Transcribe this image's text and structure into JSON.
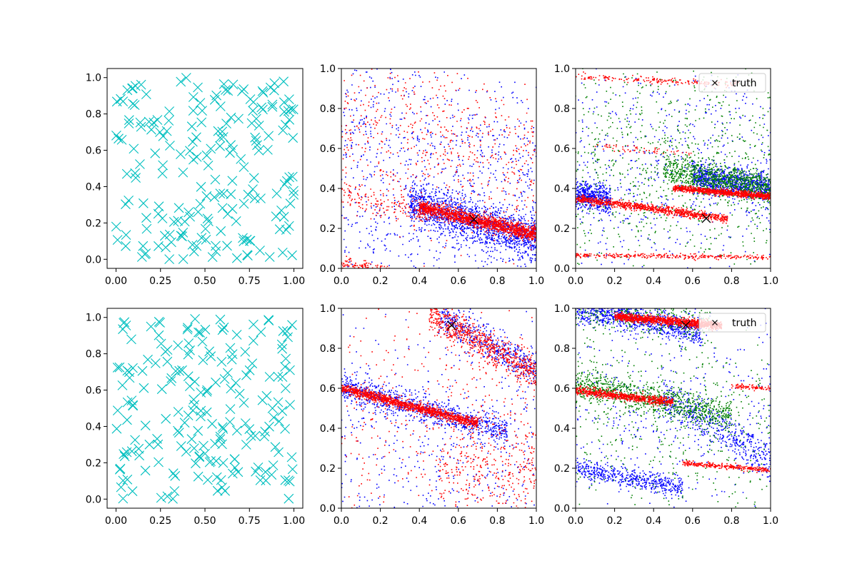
{
  "chart_data": [
    {
      "panel": "top-left",
      "type": "scatter",
      "marker": "x",
      "xlim": [
        -0.05,
        1.05
      ],
      "ylim": [
        -0.05,
        1.05
      ],
      "xticks": [
        "0.00",
        "0.25",
        "0.50",
        "0.75",
        "1.00"
      ],
      "yticks": [
        "0.0",
        "0.2",
        "0.4",
        "0.6",
        "0.8",
        "1.0"
      ],
      "series": [
        {
          "color": "#00bfbf",
          "distribution": "uniform",
          "count": 200
        }
      ]
    },
    {
      "panel": "top-middle",
      "type": "scatter",
      "marker": "dot",
      "xlim": [
        0,
        1
      ],
      "ylim": [
        0,
        1
      ],
      "xticks": [
        "0.0",
        "0.2",
        "0.4",
        "0.6",
        "0.8",
        "1.0"
      ],
      "yticks": [
        "0.0",
        "0.2",
        "0.4",
        "0.6",
        "0.8",
        "1.0"
      ],
      "truth": {
        "x": 0.68,
        "y": 0.245
      },
      "series": [
        {
          "color": "#0000ff",
          "bands": [
            {
              "x0": 0.35,
              "x1": 1.0,
              "y_at_0": 0.42,
              "slope": -0.27,
              "spread": 0.055,
              "count": 1500
            },
            {
              "x0": 0.0,
              "x1": 1.0,
              "y_at_0": 0.1,
              "slope": 0.0,
              "spread": 0.25,
              "count": 500
            },
            {
              "x0": 0.0,
              "x1": 1.0,
              "y_at_0": 0.78,
              "slope": -0.25,
              "spread": 0.2,
              "count": 500
            }
          ]
        },
        {
          "color": "#ff0000",
          "bands": [
            {
              "x0": 0.4,
              "x1": 1.0,
              "y_at_0": 0.4,
              "slope": -0.23,
              "spread": 0.018,
              "count": 1500
            },
            {
              "x0": 0.0,
              "x1": 0.45,
              "y_at_0": 0.37,
              "slope": -0.23,
              "spread": 0.03,
              "count": 150
            },
            {
              "x0": 0.0,
              "x1": 0.25,
              "y_at_0": 0.03,
              "slope": -0.2,
              "spread": 0.015,
              "count": 150
            },
            {
              "x0": 0.0,
              "x1": 1.0,
              "y_at_0": 0.75,
              "slope": -0.25,
              "spread": 0.22,
              "count": 600
            }
          ]
        }
      ]
    },
    {
      "panel": "top-right",
      "type": "scatter",
      "marker": "dot",
      "xlim": [
        0,
        1
      ],
      "ylim": [
        0,
        1
      ],
      "xticks": [
        "0.0",
        "0.2",
        "0.4",
        "0.6",
        "0.8",
        "1.0"
      ],
      "yticks": [
        "0.0",
        "0.2",
        "0.4",
        "0.6",
        "0.8",
        "1.0"
      ],
      "truth": {
        "x": 0.67,
        "y": 0.25
      },
      "legend": {
        "label": "truth",
        "placement": "top-right"
      },
      "series": [
        {
          "color": "#0000ff",
          "bands": [
            {
              "x0": 0.6,
              "x1": 1.0,
              "y_at_0": 0.55,
              "slope": -0.15,
              "spread": 0.035,
              "count": 900
            },
            {
              "x0": 0.0,
              "x1": 0.18,
              "y_at_0": 0.37,
              "slope": -0.15,
              "spread": 0.035,
              "count": 500
            },
            {
              "x0": 0.0,
              "x1": 1.0,
              "y_at_0": 0.5,
              "slope": 0.0,
              "spread": 0.3,
              "count": 600
            }
          ]
        },
        {
          "color": "#008000",
          "bands": [
            {
              "x0": 0.45,
              "x1": 1.0,
              "y_at_0": 0.56,
              "slope": -0.16,
              "spread": 0.04,
              "count": 900
            },
            {
              "x0": 0.0,
              "x1": 1.0,
              "y_at_0": 0.5,
              "slope": 0.0,
              "spread": 0.3,
              "count": 800
            }
          ]
        },
        {
          "color": "#ff0000",
          "bands": [
            {
              "x0": 0.0,
              "x1": 0.78,
              "y_at_0": 0.35,
              "slope": -0.13,
              "spread": 0.01,
              "count": 900
            },
            {
              "x0": 0.5,
              "x1": 1.0,
              "y_at_0": 0.445,
              "slope": -0.085,
              "spread": 0.008,
              "count": 900
            },
            {
              "x0": 0.0,
              "x1": 1.0,
              "y_at_0": 0.065,
              "slope": -0.01,
              "spread": 0.006,
              "count": 300
            },
            {
              "x0": 0.0,
              "x1": 0.85,
              "y_at_0": 0.96,
              "slope": -0.05,
              "spread": 0.008,
              "count": 180
            },
            {
              "x0": 0.1,
              "x1": 0.6,
              "y_at_0": 0.62,
              "slope": -0.08,
              "spread": 0.01,
              "count": 60
            }
          ]
        }
      ]
    },
    {
      "panel": "bottom-left",
      "type": "scatter",
      "marker": "x",
      "xlim": [
        -0.05,
        1.05
      ],
      "ylim": [
        -0.05,
        1.05
      ],
      "xticks": [
        "0.00",
        "0.25",
        "0.50",
        "0.75",
        "1.00"
      ],
      "yticks": [
        "0.0",
        "0.2",
        "0.4",
        "0.6",
        "0.8",
        "1.0"
      ],
      "series": [
        {
          "color": "#00bfbf",
          "distribution": "uniform",
          "count": 200
        }
      ]
    },
    {
      "panel": "bottom-middle",
      "type": "scatter",
      "marker": "dot",
      "xlim": [
        0,
        1
      ],
      "ylim": [
        0,
        1
      ],
      "xticks": [
        "0.0",
        "0.2",
        "0.4",
        "0.6",
        "0.8",
        "1.0"
      ],
      "yticks": [
        "0.0",
        "0.2",
        "0.4",
        "0.6",
        "0.8",
        "1.0"
      ],
      "truth": {
        "x": 0.565,
        "y": 0.915
      },
      "series": [
        {
          "color": "#0000ff",
          "bands": [
            {
              "x0": 0.0,
              "x1": 0.85,
              "y_at_0": 0.6,
              "slope": -0.25,
              "spread": 0.035,
              "count": 900
            },
            {
              "x0": 0.5,
              "x1": 1.0,
              "y_at_0": 1.24,
              "slope": -0.55,
              "spread": 0.045,
              "count": 500
            },
            {
              "x0": 0.0,
              "x1": 1.0,
              "y_at_0": 0.3,
              "slope": 0.0,
              "spread": 0.3,
              "count": 500
            }
          ]
        },
        {
          "color": "#ff0000",
          "bands": [
            {
              "x0": 0.0,
              "x1": 0.7,
              "y_at_0": 0.6,
              "slope": -0.25,
              "spread": 0.012,
              "count": 1300
            },
            {
              "x0": 0.45,
              "x1": 1.0,
              "y_at_0": 1.22,
              "slope": -0.55,
              "spread": 0.04,
              "count": 700
            },
            {
              "x0": 0.5,
              "x1": 1.0,
              "y_at_0": 0.2,
              "slope": 0.0,
              "spread": 0.12,
              "count": 300
            },
            {
              "x0": 0.0,
              "x1": 1.0,
              "y_at_0": 0.45,
              "slope": 0.0,
              "spread": 0.3,
              "count": 400
            }
          ]
        }
      ]
    },
    {
      "panel": "bottom-right",
      "type": "scatter",
      "marker": "dot",
      "xlim": [
        0,
        1
      ],
      "ylim": [
        0,
        1
      ],
      "xticks": [
        "0.0",
        "0.2",
        "0.4",
        "0.6",
        "0.8",
        "1.0"
      ],
      "yticks": [
        "0.0",
        "0.2",
        "0.4",
        "0.6",
        "0.8",
        "1.0"
      ],
      "truth": {
        "x": 0.565,
        "y": 0.915
      },
      "legend": {
        "label": "truth",
        "placement": "top-right"
      },
      "series": [
        {
          "color": "#0000ff",
          "bands": [
            {
              "x0": 0.0,
              "x1": 0.65,
              "y_at_0": 1.0,
              "slope": -0.18,
              "spread": 0.035,
              "count": 900
            },
            {
              "x0": 0.0,
              "x1": 0.55,
              "y_at_0": 0.2,
              "slope": -0.18,
              "spread": 0.025,
              "count": 500
            },
            {
              "x0": 0.45,
              "x1": 1.0,
              "y_at_0": 0.8,
              "slope": -0.55,
              "spread": 0.05,
              "count": 500
            },
            {
              "x0": 0.0,
              "x1": 1.0,
              "y_at_0": 0.5,
              "slope": 0.0,
              "spread": 0.3,
              "count": 400
            }
          ]
        },
        {
          "color": "#008000",
          "bands": [
            {
              "x0": 0.0,
              "x1": 0.8,
              "y_at_0": 0.62,
              "slope": -0.2,
              "spread": 0.04,
              "count": 900
            },
            {
              "x0": 0.0,
              "x1": 0.7,
              "y_at_0": 1.0,
              "slope": -0.1,
              "spread": 0.05,
              "count": 300
            },
            {
              "x0": 0.0,
              "x1": 1.0,
              "y_at_0": 0.4,
              "slope": 0.0,
              "spread": 0.3,
              "count": 500
            }
          ]
        },
        {
          "color": "#ff0000",
          "bands": [
            {
              "x0": 0.2,
              "x1": 0.75,
              "y_at_0": 0.975,
              "slope": -0.08,
              "spread": 0.01,
              "count": 1200
            },
            {
              "x0": 0.0,
              "x1": 0.5,
              "y_at_0": 0.59,
              "slope": -0.12,
              "spread": 0.01,
              "count": 700
            },
            {
              "x0": 0.55,
              "x1": 1.0,
              "y_at_0": 0.27,
              "slope": -0.08,
              "spread": 0.006,
              "count": 300
            },
            {
              "x0": 0.8,
              "x1": 1.0,
              "y_at_0": 0.66,
              "slope": -0.06,
              "spread": 0.006,
              "count": 80
            }
          ]
        }
      ]
    }
  ]
}
